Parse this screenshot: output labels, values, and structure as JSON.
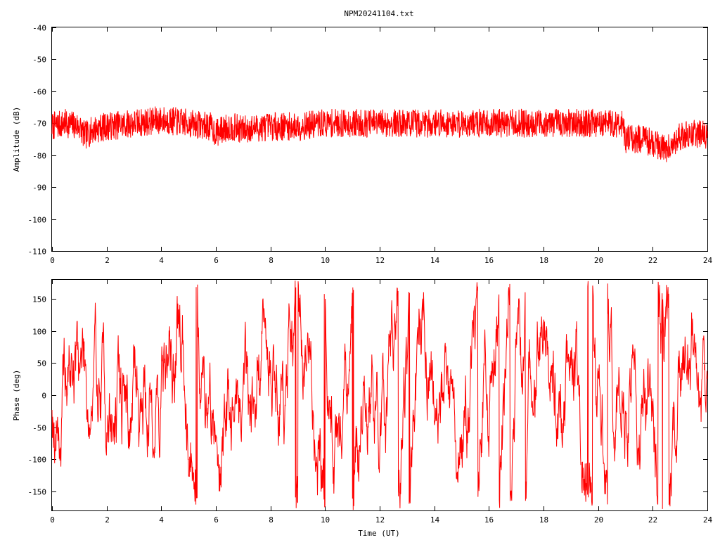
{
  "title": "NPM20241104.txt",
  "chart_data": [
    {
      "type": "line",
      "title": "NPM20241104.txt",
      "xlabel": "",
      "ylabel": "Amplitude (dB)",
      "xlim": [
        0,
        24
      ],
      "ylim": [
        -110,
        -40
      ],
      "xticks": [
        "0",
        "2",
        "4",
        "6",
        "8",
        "10",
        "12",
        "14",
        "16",
        "18",
        "20",
        "22",
        "24"
      ],
      "yticks": [
        "-40",
        "-50",
        "-60",
        "-70",
        "-80",
        "-90",
        "-100",
        "-110"
      ],
      "grid": false,
      "series": [
        {
          "color": "#ff0000",
          "x": [
            0,
            0.5,
            1,
            1.2,
            1.5,
            2,
            3,
            4,
            5,
            5.8,
            6,
            6.5,
            7,
            8,
            9,
            10,
            11,
            12,
            13,
            14,
            15,
            16,
            17,
            18,
            19,
            20,
            20.9,
            21,
            21.5,
            22,
            22.5,
            23,
            23.5,
            24
          ],
          "values": [
            -71,
            -70,
            -71,
            -74,
            -72,
            -71,
            -70,
            -69,
            -70,
            -71,
            -73,
            -71,
            -72,
            -71,
            -71,
            -70,
            -70,
            -70,
            -70,
            -70,
            -70,
            -70,
            -70,
            -70,
            -70,
            -70,
            -70,
            -75,
            -75,
            -76,
            -78,
            -74,
            -73,
            -74
          ]
        }
      ]
    },
    {
      "type": "line",
      "title": "",
      "xlabel": "Time (UT)",
      "ylabel": "Phase (deg)",
      "xlim": [
        0,
        24
      ],
      "ylim": [
        -180,
        180
      ],
      "xticks": [
        "0",
        "2",
        "4",
        "6",
        "8",
        "10",
        "12",
        "14",
        "16",
        "18",
        "20",
        "22",
        "24"
      ],
      "yticks": [
        "150",
        "100",
        "50",
        "0",
        "-50",
        "-100",
        "-150"
      ],
      "grid": false,
      "series": [
        {
          "color": "#ff0000",
          "x": [
            0,
            1,
            2,
            3,
            4,
            5,
            6,
            7,
            8,
            9,
            10,
            11,
            12,
            13,
            14,
            15,
            16,
            17,
            18,
            19,
            20,
            21,
            22,
            23,
            24
          ],
          "values": [
            0,
            50,
            -30,
            20,
            60,
            10,
            -80,
            40,
            100,
            -60,
            -120,
            80,
            -90,
            120,
            -30,
            20,
            70,
            40,
            90,
            10,
            -80,
            60,
            -20,
            30,
            -50
          ]
        }
      ]
    }
  ]
}
